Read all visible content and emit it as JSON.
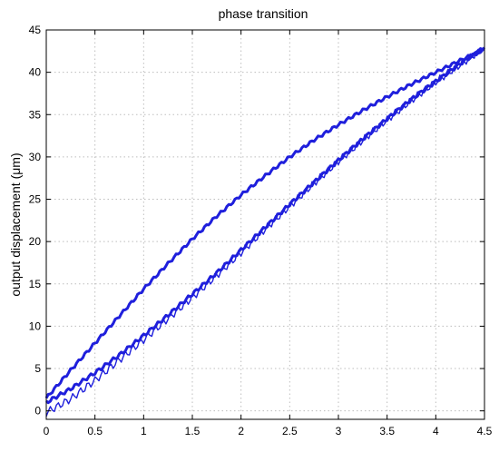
{
  "chart_data": {
    "type": "line",
    "title": "phase transition",
    "xlabel": "",
    "ylabel": "output displacement (μm)",
    "xlim": [
      0,
      4.5
    ],
    "ylim": [
      -1,
      45
    ],
    "xticks": [
      0,
      0.5,
      1,
      1.5,
      2,
      2.5,
      3,
      3.5,
      4,
      4.5
    ],
    "xtick_labels": [
      "0",
      "0.5",
      "1",
      "1.5",
      "2",
      "2.5",
      "3",
      "3.5",
      "4",
      "4.5"
    ],
    "yticks": [
      0,
      5,
      10,
      15,
      20,
      25,
      30,
      35,
      40,
      45
    ],
    "ytick_labels": [
      "0",
      "5",
      "10",
      "15",
      "20",
      "25",
      "30",
      "35",
      "40",
      "45"
    ],
    "grid": true,
    "legend": "none",
    "colors": {
      "series": "#1f1fdc",
      "axis": "#000000",
      "grid": "#bdbdbd"
    },
    "series": [
      {
        "x": [
          0,
          0.25,
          0.5,
          0.75,
          1,
          1.25,
          1.5,
          1.75,
          2,
          2.25,
          2.5,
          2.75,
          3,
          3.25,
          3.5,
          3.75,
          4,
          4.25,
          4.5
        ],
        "values": [
          1.5,
          4.8,
          8.0,
          11.2,
          14.4,
          17.4,
          20.3,
          23.0,
          25.5,
          27.8,
          30.0,
          32.0,
          33.8,
          35.5,
          37.1,
          38.6,
          40.0,
          41.4,
          42.7
        ]
      },
      {
        "x": [
          0,
          0.25,
          0.5,
          0.75,
          1,
          1.25,
          1.5,
          1.75,
          2,
          2.25,
          2.5,
          2.75,
          3,
          3.25,
          3.5,
          3.75,
          4,
          4.25,
          4.5
        ],
        "values": [
          1.0,
          2.6,
          4.5,
          6.6,
          8.9,
          11.3,
          13.8,
          16.3,
          19.0,
          21.7,
          24.4,
          27.0,
          29.6,
          32.1,
          34.5,
          36.8,
          38.9,
          41.0,
          42.9
        ]
      },
      {
        "x": [
          0,
          0.25,
          0.5,
          0.75,
          1,
          1.25,
          1.5,
          1.75,
          2,
          2.25,
          2.5,
          2.75,
          3,
          3.25,
          3.5,
          3.75,
          4,
          4.25,
          4.5
        ],
        "values": [
          -0.2,
          1.4,
          3.6,
          6.0,
          8.4,
          10.9,
          13.4,
          16.0,
          18.7,
          21.5,
          24.2,
          26.9,
          29.5,
          32.0,
          34.4,
          36.7,
          38.9,
          40.9,
          42.9
        ]
      }
    ]
  }
}
